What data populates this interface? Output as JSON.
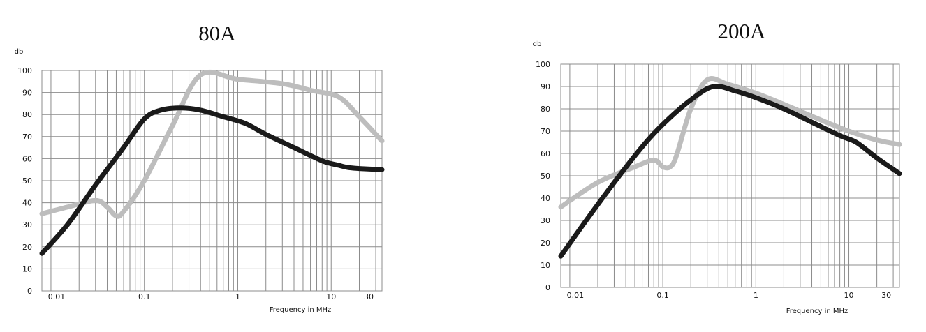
{
  "chart_data": [
    {
      "type": "line",
      "title": "80A",
      "ylabel": "db",
      "xlabel": "Frequency in MHz",
      "xscale": "log",
      "xlim": [
        0.008,
        35
      ],
      "ylim": [
        0,
        100
      ],
      "x_tick_labels": [
        "0.01",
        "0.1",
        "1",
        "10",
        "30"
      ],
      "y_tick_labels": [
        "0",
        "10",
        "20",
        "30",
        "40",
        "50",
        "60",
        "70",
        "80",
        "90",
        "100"
      ],
      "grid": true,
      "series": [
        {
          "color": "#1a1a1a",
          "x": [
            0.008,
            0.015,
            0.03,
            0.06,
            0.1,
            0.15,
            0.25,
            0.4,
            0.7,
            1.2,
            2,
            4,
            8,
            12,
            15,
            20,
            35
          ],
          "values": [
            17,
            30,
            48,
            65,
            78,
            82,
            83,
            82,
            79,
            76,
            71,
            65,
            59,
            57,
            56,
            55.5,
            55
          ]
        },
        {
          "color": "#bdbdbd",
          "x": [
            0.008,
            0.015,
            0.03,
            0.04,
            0.05,
            0.06,
            0.1,
            0.2,
            0.4,
            1,
            3,
            6,
            12,
            20,
            35
          ],
          "values": [
            35,
            38,
            41,
            38,
            34,
            36,
            50,
            75,
            98,
            96,
            94,
            91,
            88,
            79,
            68
          ]
        }
      ]
    },
    {
      "type": "line",
      "title": "200A",
      "ylabel": "db",
      "xlabel": "Frequency in MHz",
      "xscale": "log",
      "xlim": [
        0.008,
        35
      ],
      "ylim": [
        0,
        100
      ],
      "x_tick_labels": [
        "0.01",
        "0.1",
        "1",
        "10",
        "30"
      ],
      "y_tick_labels": [
        "0",
        "10",
        "20",
        "30",
        "40",
        "50",
        "60",
        "70",
        "80",
        "90",
        "100"
      ],
      "grid": true,
      "series": [
        {
          "color": "#1a1a1a",
          "x": [
            0.008,
            0.015,
            0.03,
            0.06,
            0.1,
            0.2,
            0.35,
            0.6,
            1,
            2,
            4,
            8,
            12,
            20,
            35
          ],
          "values": [
            14,
            30,
            47,
            63,
            73,
            84,
            90,
            88,
            85,
            80,
            74,
            68,
            65,
            58,
            51
          ]
        },
        {
          "color": "#bdbdbd",
          "x": [
            0.008,
            0.02,
            0.05,
            0.08,
            0.1,
            0.12,
            0.14,
            0.2,
            0.3,
            0.5,
            1,
            2,
            5,
            10,
            20,
            35
          ],
          "values": [
            36,
            47,
            54,
            57,
            54,
            54,
            59,
            80,
            93,
            91,
            87,
            82,
            75,
            70,
            66,
            64
          ]
        }
      ]
    }
  ]
}
